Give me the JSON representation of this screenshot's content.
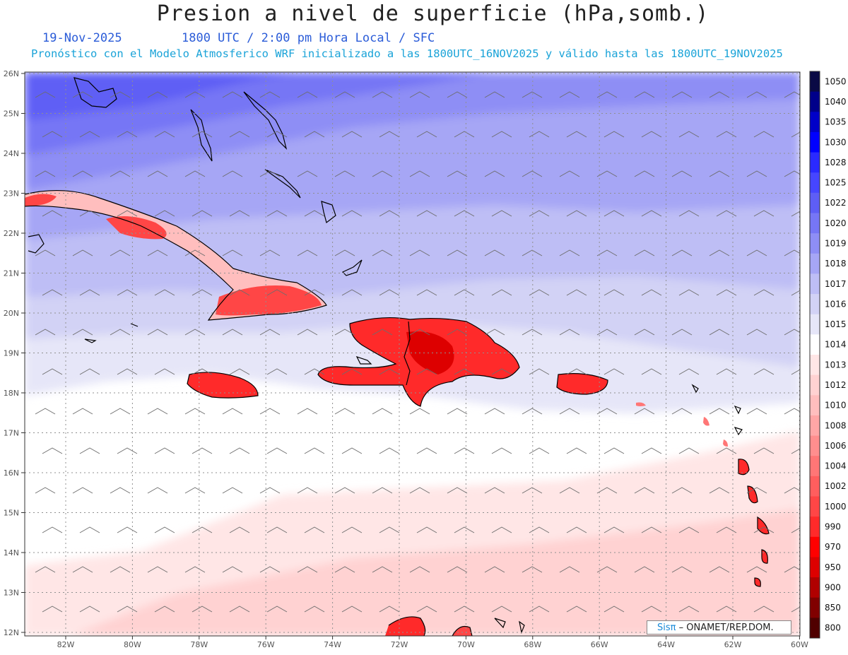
{
  "header": {
    "title": "Presion a nivel de superficie (hPa,somb.)",
    "date": "19-Nov-2025",
    "time": "1800 UTC / 2:00 pm Hora Local / SFC",
    "info": "Pronóstico con el Modelo Atmosferico WRF inicializado a las 1800UTC_16NOV2025 y válido hasta las  1800UTC_19NOV2025"
  },
  "map": {
    "lon_ticks": [
      "82W",
      "80W",
      "78W",
      "76W",
      "74W",
      "72W",
      "70W",
      "68W",
      "66W",
      "64W",
      "62W",
      "60W"
    ],
    "lat_ticks": [
      "26N",
      "25N",
      "24N",
      "23N",
      "22N",
      "21N",
      "20N",
      "19N",
      "18N",
      "17N",
      "16N",
      "15N",
      "14N",
      "13N",
      "12N"
    ]
  },
  "colorbar": {
    "levels": [
      "1050",
      "1040",
      "1035",
      "1030",
      "1028",
      "1025",
      "1022",
      "1020",
      "1019",
      "1018",
      "1017",
      "1016",
      "1015",
      "1014",
      "1013",
      "1012",
      "1010",
      "1008",
      "1006",
      "1004",
      "1002",
      "1000",
      "990",
      "970",
      "950",
      "900",
      "850",
      "800"
    ],
    "colors": [
      "#0a0a45",
      "#00008a",
      "#0000c8",
      "#0000ff",
      "#2a2aff",
      "#4646ff",
      "#5e5ef5",
      "#7676f5",
      "#8e8ef5",
      "#a6a6f5",
      "#bebef5",
      "#d2d2f5",
      "#e6e6f8",
      "#ffffff",
      "#ffe6e6",
      "#ffd2d2",
      "#ffbebe",
      "#ffa6a6",
      "#ff8e8e",
      "#ff7676",
      "#ff5e5e",
      "#ff4646",
      "#ff2a2a",
      "#ff0000",
      "#dd0000",
      "#b00000",
      "#800000",
      "#500000"
    ]
  },
  "credit": {
    "brand": "Sisπ",
    "org": "– ONAMET/REP.DOM."
  },
  "colors": {
    "header_date": "#2b5cd8",
    "header_info": "#1aa3d8"
  }
}
